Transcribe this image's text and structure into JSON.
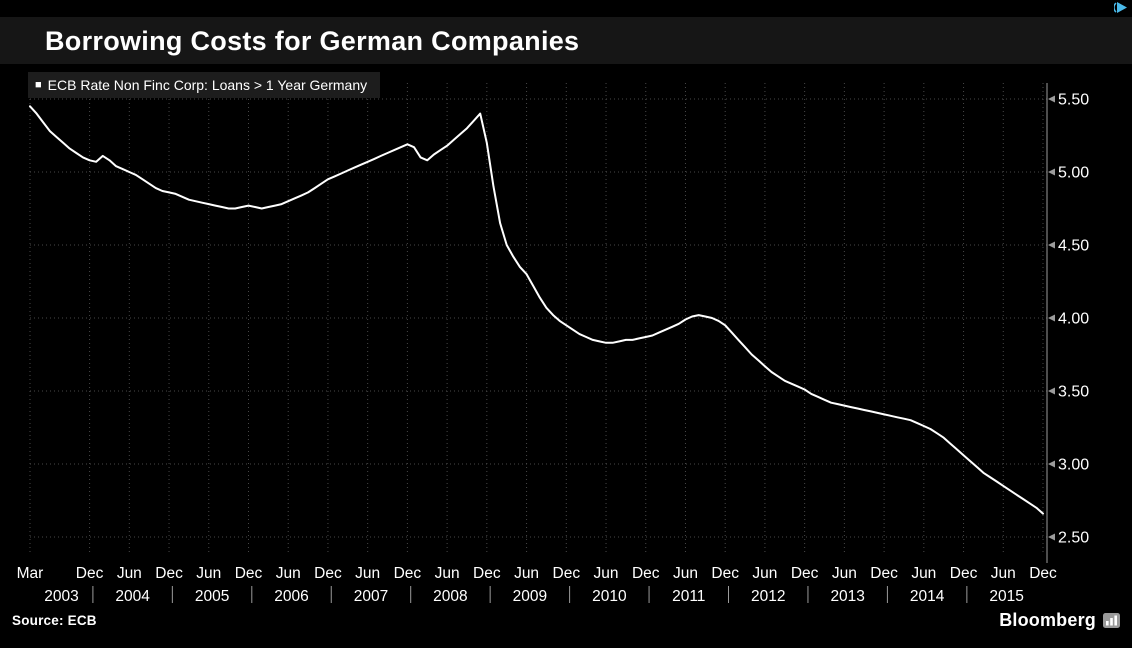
{
  "header": {
    "title": "Borrowing Costs for German Companies"
  },
  "legend": {
    "bullet": "■",
    "label": "ECB Rate Non Finc Corp: Loans > 1 Year Germany"
  },
  "footer": {
    "source": "Source: ECB",
    "brand": "Bloomberg"
  },
  "icons": {
    "adchoices": "play-triangle",
    "legend_bullet": "filled-square",
    "bloomberg_mark": "bar-chart-in-rounded-square"
  },
  "colors": {
    "background": "#000000",
    "title_band": "#161616",
    "legend_bg": "#1d1d1d",
    "line": "#ffffff",
    "grid": "#484848",
    "axis": "#9b9b9b",
    "text": "#ffffff",
    "adchoices": "#4ab9e9"
  },
  "chart_data": {
    "type": "line",
    "title": "Borrowing Costs for German Companies",
    "series_name": "ECB Rate Non Finc Corp: Loans > 1 Year Germany",
    "unit": "percent",
    "x_start": "2003-03",
    "x_end": "2015-12",
    "x_frequency": "monthly",
    "grid": "dotted",
    "legend_position": "top-left",
    "y_axis_side": "right",
    "ylim": [
      2.32,
      5.6
    ],
    "y_ticks": [
      5.5,
      5.0,
      4.5,
      4.0,
      3.5,
      3.0,
      2.5
    ],
    "x_tick_labels": [
      "Mar",
      "Dec",
      "Jun",
      "Dec",
      "Jun",
      "Dec",
      "Jun",
      "Dec",
      "Jun",
      "Dec",
      "Jun",
      "Dec",
      "Jun",
      "Dec",
      "Jun",
      "Dec",
      "Jun",
      "Dec",
      "Jun",
      "Dec",
      "Jun",
      "Dec",
      "Jun",
      "Dec",
      "Jun",
      "Dec"
    ],
    "year_labels": [
      "2003",
      "2004",
      "2005",
      "2006",
      "2007",
      "2008",
      "2009",
      "2010",
      "2011",
      "2012",
      "2013",
      "2014",
      "2015"
    ],
    "line_color": "#ffffff",
    "values_monthly": [
      5.45,
      5.4,
      5.34,
      5.28,
      5.24,
      5.2,
      5.16,
      5.13,
      5.1,
      5.08,
      5.07,
      5.11,
      5.08,
      5.04,
      5.02,
      5.0,
      4.98,
      4.95,
      4.92,
      4.89,
      4.87,
      4.86,
      4.85,
      4.83,
      4.81,
      4.8,
      4.79,
      4.78,
      4.77,
      4.76,
      4.75,
      4.75,
      4.76,
      4.77,
      4.76,
      4.75,
      4.76,
      4.77,
      4.78,
      4.8,
      4.82,
      4.84,
      4.86,
      4.89,
      4.92,
      4.95,
      4.97,
      4.99,
      5.01,
      5.03,
      5.05,
      5.07,
      5.09,
      5.11,
      5.13,
      5.15,
      5.17,
      5.19,
      5.17,
      5.1,
      5.08,
      5.12,
      5.15,
      5.18,
      5.22,
      5.26,
      5.3,
      5.35,
      5.4,
      5.2,
      4.9,
      4.65,
      4.5,
      4.42,
      4.35,
      4.3,
      4.22,
      4.14,
      4.07,
      4.02,
      3.98,
      3.95,
      3.92,
      3.89,
      3.87,
      3.85,
      3.84,
      3.83,
      3.83,
      3.84,
      3.85,
      3.85,
      3.86,
      3.87,
      3.88,
      3.9,
      3.92,
      3.94,
      3.96,
      3.99,
      4.01,
      4.02,
      4.01,
      4.0,
      3.98,
      3.95,
      3.9,
      3.85,
      3.8,
      3.75,
      3.71,
      3.67,
      3.63,
      3.6,
      3.57,
      3.55,
      3.53,
      3.51,
      3.48,
      3.46,
      3.44,
      3.42,
      3.41,
      3.4,
      3.39,
      3.38,
      3.37,
      3.36,
      3.35,
      3.34,
      3.33,
      3.32,
      3.31,
      3.3,
      3.28,
      3.26,
      3.24,
      3.21,
      3.18,
      3.14,
      3.1,
      3.06,
      3.02,
      2.98,
      2.94,
      2.91,
      2.88,
      2.85,
      2.82,
      2.79,
      2.76,
      2.73,
      2.7,
      2.66
    ]
  }
}
